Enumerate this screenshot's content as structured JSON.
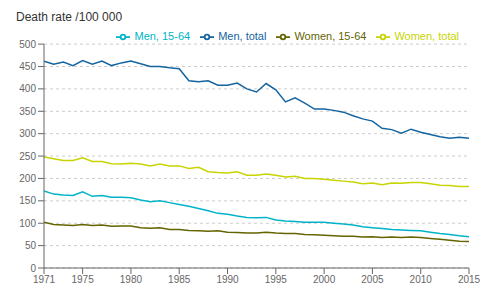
{
  "chart_data": {
    "type": "line",
    "title": "Death rate /100 000",
    "x": [
      1971,
      1972,
      1973,
      1974,
      1975,
      1976,
      1977,
      1978,
      1979,
      1980,
      1981,
      1982,
      1983,
      1984,
      1985,
      1986,
      1987,
      1988,
      1989,
      1990,
      1991,
      1992,
      1993,
      1994,
      1995,
      1996,
      1997,
      1998,
      1999,
      2000,
      2001,
      2002,
      2003,
      2004,
      2005,
      2006,
      2007,
      2008,
      2009,
      2010,
      2011,
      2012,
      2013,
      2014,
      2015
    ],
    "series": [
      {
        "name": "Men, total",
        "color": "#1464a0",
        "values": [
          462,
          455,
          460,
          452,
          463,
          455,
          462,
          452,
          458,
          462,
          456,
          450,
          450,
          447,
          445,
          418,
          416,
          418,
          408,
          408,
          413,
          400,
          393,
          412,
          398,
          371,
          380,
          368,
          355,
          355,
          352,
          348,
          340,
          333,
          328,
          312,
          309,
          301,
          310,
          303,
          298,
          293,
          290,
          292,
          290
        ]
      },
      {
        "name": "Women, total",
        "color": "#c8d400",
        "values": [
          248,
          244,
          240,
          240,
          246,
          238,
          238,
          233,
          232,
          234,
          232,
          228,
          232,
          228,
          228,
          222,
          225,
          215,
          213,
          212,
          215,
          207,
          207,
          210,
          207,
          203,
          205,
          200,
          200,
          198,
          196,
          194,
          192,
          188,
          190,
          186,
          190,
          189,
          191,
          191,
          188,
          185,
          184,
          182,
          182
        ]
      },
      {
        "name": "Men, 15-64",
        "color": "#00b4c8",
        "values": [
          172,
          165,
          163,
          162,
          170,
          160,
          162,
          158,
          158,
          157,
          152,
          148,
          150,
          146,
          142,
          138,
          133,
          128,
          122,
          120,
          116,
          113,
          112,
          113,
          107,
          105,
          104,
          102,
          102,
          102,
          100,
          98,
          96,
          92,
          90,
          88,
          86,
          85,
          84,
          83,
          80,
          77,
          75,
          72,
          70
        ]
      },
      {
        "name": "Women, 15-64",
        "color": "#646400",
        "values": [
          102,
          97,
          96,
          95,
          97,
          95,
          96,
          93,
          94,
          94,
          90,
          89,
          90,
          86,
          86,
          84,
          83,
          82,
          83,
          80,
          79,
          78,
          78,
          80,
          78,
          77,
          77,
          75,
          74,
          73,
          72,
          71,
          71,
          69,
          70,
          68,
          69,
          68,
          69,
          68,
          66,
          64,
          62,
          60,
          59
        ]
      }
    ],
    "xlim": [
      1971,
      2015
    ],
    "xticks": [
      1971,
      1975,
      1980,
      1985,
      1990,
      1995,
      2000,
      2005,
      2010,
      2015
    ],
    "ylim": [
      0,
      500
    ],
    "yticks": [
      0,
      50,
      100,
      150,
      200,
      250,
      300,
      350,
      400,
      450,
      500
    ],
    "grid": "y",
    "legend": "upper right"
  }
}
